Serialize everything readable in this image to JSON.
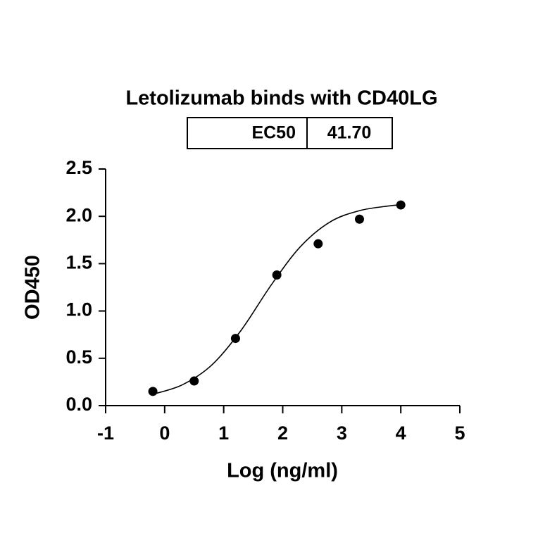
{
  "chart_data": {
    "type": "scatter",
    "title": "Letolizumab binds with CD40LG",
    "table": {
      "header": "EC50",
      "value": "41.70"
    },
    "x_label": "Log (ng/ml)",
    "y_label": "OD450",
    "series": [
      {
        "x": [
          -0.2,
          0.5,
          1.2,
          1.9,
          2.6,
          3.3,
          4.0
        ],
        "values": [
          0.15,
          0.26,
          0.71,
          1.38,
          1.71,
          1.97,
          2.12
        ],
        "color": "#000000",
        "style": "points"
      },
      {
        "x": [
          -0.2,
          0.3,
          0.8,
          1.3,
          1.8,
          2.3,
          2.8,
          3.3,
          3.8,
          4.0
        ],
        "values": [
          0.12,
          0.22,
          0.43,
          0.8,
          1.27,
          1.68,
          1.94,
          2.06,
          2.11,
          2.12
        ],
        "color": "#000000",
        "style": "line"
      }
    ],
    "xlim": [
      -1,
      5
    ],
    "xticks": [
      -1,
      0,
      1,
      2,
      3,
      4,
      5
    ],
    "ylim": [
      0,
      2.5
    ],
    "yticks": [
      {
        "value": 0,
        "label": "0.0"
      },
      {
        "value": 0.5,
        "label": "0.5"
      },
      {
        "value": 1,
        "label": "1.0"
      },
      {
        "value": 1.5,
        "label": "1.5"
      },
      {
        "value": 2,
        "label": "2.0"
      },
      {
        "value": 2.5,
        "label": "2.5"
      }
    ]
  }
}
